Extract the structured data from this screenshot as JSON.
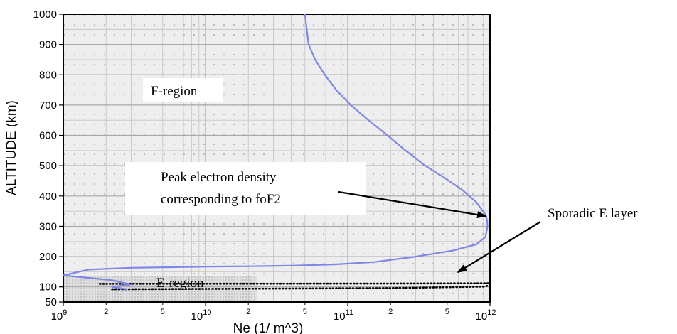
{
  "chart_data": {
    "type": "line",
    "xlabel": "Ne (1/  m^3)",
    "ylabel": "ALTITUDE (km)",
    "xscale": "log",
    "xlim": [
      1000000000.0,
      1000000000000.0
    ],
    "ylim": [
      50,
      1000
    ],
    "grid": true,
    "x_major_ticks": [
      {
        "base": "10",
        "exp": "9",
        "value": 1000000000.0
      },
      {
        "base": "10",
        "exp": "10",
        "value": 10000000000.0
      },
      {
        "base": "10",
        "exp": "11",
        "value": 100000000000.0
      },
      {
        "base": "10",
        "exp": "12",
        "value": 1000000000000.0
      }
    ],
    "x_minor_ticks": [
      {
        "label": "2",
        "value": 2000000000.0
      },
      {
        "label": "5",
        "value": 5000000000.0
      },
      {
        "label": "2",
        "value": 20000000000.0
      },
      {
        "label": "5",
        "value": 50000000000.0
      },
      {
        "label": "2",
        "value": 200000000000.0
      },
      {
        "label": "5",
        "value": 500000000000.0
      }
    ],
    "y_ticks": [
      "50",
      "100",
      "200",
      "300",
      "400",
      "500",
      "600",
      "700",
      "800",
      "900",
      "1000"
    ],
    "y_tick_values": [
      50,
      100,
      200,
      300,
      400,
      500,
      600,
      700,
      800,
      900,
      1000
    ],
    "series": [
      {
        "color": "#7f86e6",
        "x": [
          2800000000.0,
          2200000000.0,
          3000000000.0,
          2200000000.0,
          1000000000.0,
          1500000000.0,
          3000000000.0,
          5800000000.0,
          10500000000.0,
          20500000000.0,
          40000000000.0,
          80000000000.0,
          155000000000.0,
          300000000000.0,
          550000000000.0,
          800000000000.0,
          930000000000.0,
          960000000000.0,
          955000000000.0,
          925000000000.0,
          800000000000.0,
          640000000000.0,
          480000000000.0,
          350000000000.0,
          255000000000.0,
          190000000000.0,
          140000000000.0,
          105000000000.0,
          83000000000.0,
          69000000000.0,
          59000000000.0,
          53000000000.0,
          50000000000.0
        ],
        "y": [
          92,
          100,
          108,
          122,
          138,
          157,
          163,
          165,
          167,
          168,
          170,
          174,
          182,
          200,
          220,
          240,
          265,
          300,
          320,
          340,
          380,
          420,
          460,
          500,
          550,
          600,
          650,
          700,
          750,
          800,
          850,
          900,
          1000
        ]
      },
      {
        "style": "dotted",
        "x": [
          1800000000.0,
          200000000000.0,
          900000000000.0,
          1000000000000.0
        ],
        "y": [
          110,
          111,
          112,
          112
        ]
      },
      {
        "style": "dotted",
        "x": [
          2200000000.0,
          200000000000.0,
          900000000000.0,
          1000000000000.0
        ],
        "y": [
          92,
          96,
          101,
          105
        ]
      }
    ],
    "annotations": [
      {
        "id": "fregion",
        "text": "F-region"
      },
      {
        "id": "eregion",
        "text": "E-region"
      },
      {
        "id": "peak1",
        "text": "Peak electron density"
      },
      {
        "id": "peak2",
        "text": "corresponding to foF2"
      },
      {
        "id": "sporadic",
        "text": "Sporadic E layer"
      }
    ]
  }
}
